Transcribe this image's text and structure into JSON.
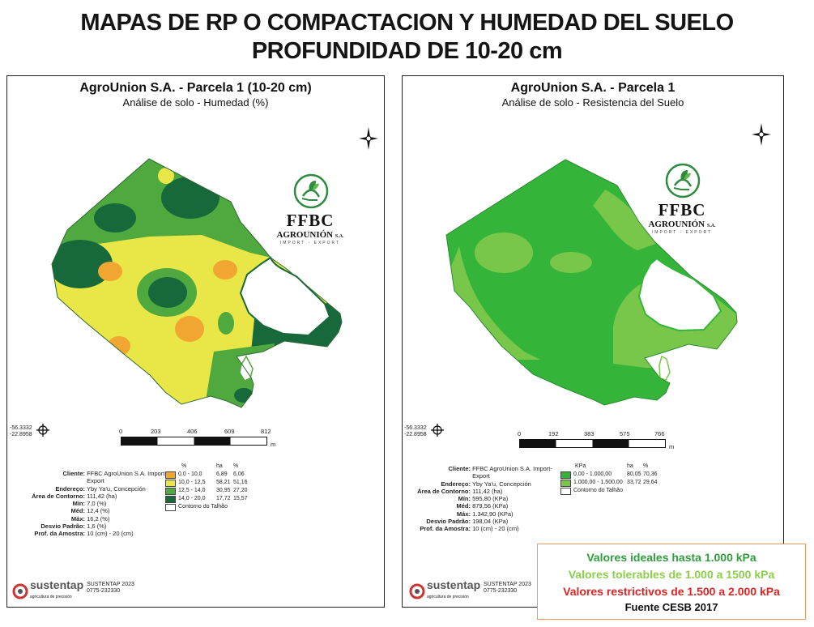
{
  "header": {
    "line1": "MAPAS DE RP O COMPACTACION Y HUMEDAD DEL SUELO",
    "line2": "PROFUNDIDAD DE 10-20 cm"
  },
  "colors": {
    "humidity_0_10": "#f0a630",
    "humidity_10_125": "#e9e647",
    "humidity_125_14": "#4fa93e",
    "humidity_14_20": "#17683a",
    "resistance_0_1000": "#34b53a",
    "resistance_1000_1500": "#78c74a",
    "ideal_text": "#2f9e3d",
    "tolerable_text": "#8ccf4a",
    "restrictive_text": "#e02424",
    "ref_border": "#e89a62"
  },
  "left_map": {
    "title": "AgroUnion S.A. - Parcela 1 (10-20 cm)",
    "subtitle": "Análise de solo - Humedad (%)",
    "logo": {
      "name": "FFBC",
      "company": "AGROUNIÓN",
      "suffix": "S.A.",
      "tagline": "IMPORT - EXPORT"
    },
    "coord_lon": "-56.3332",
    "coord_lat": "-22.8958",
    "scale_labels": [
      "0",
      "203",
      "406",
      "609",
      "812"
    ],
    "scale_unit": "m",
    "info": [
      {
        "key": "Cliente:",
        "value": "FFBC AgroUnion S.A. Import-"
      },
      {
        "key": "",
        "value": "Export"
      },
      {
        "key": "Endereço:",
        "value": "Yby Ya'u, Concepción"
      },
      {
        "key": "Área de Contorno:",
        "value": "111,42 (ha)"
      },
      {
        "key": "Mín:",
        "value": "7,0 (%)"
      },
      {
        "key": "Méd:",
        "value": "12,4 (%)"
      },
      {
        "key": "Máx:",
        "value": "16,2 (%)"
      },
      {
        "key": "Desvio Padrão:",
        "value": "1,6 (%)"
      },
      {
        "key": "Prof. da Amostra:",
        "value": "10 (cm) - 20 (cm)"
      }
    ],
    "legend_headers": [
      "%",
      "ha",
      "%"
    ],
    "legend": [
      {
        "range": "0,0 - 10,0",
        "ha": "6,89",
        "pct": "6,06"
      },
      {
        "range": "10,0 - 12,5",
        "ha": "58,21",
        "pct": "51,16"
      },
      {
        "range": "12,5 - 14,0",
        "ha": "30,95",
        "pct": "27,20"
      },
      {
        "range": "14,0 - 20,0",
        "ha": "17,72",
        "pct": "15,57"
      },
      {
        "range": "Contorno do Talhão",
        "ha": "",
        "pct": ""
      }
    ],
    "footer_logo": "sustentap",
    "footer_tag": "agricultura de precisión",
    "footer_name": "SUSTENTAP 2023",
    "footer_phone": "0775-232330"
  },
  "right_map": {
    "title": "AgroUnion S.A. - Parcela 1",
    "subtitle": "Análise de solo - Resistencia del Suelo",
    "logo": {
      "name": "FFBC",
      "company": "AGROUNIÓN",
      "suffix": "S.A.",
      "tagline": "IMPORT - EXPORT"
    },
    "coord_lon": "-56.3332",
    "coord_lat": "-22.8958",
    "scale_labels": [
      "0",
      "192",
      "383",
      "575",
      "766"
    ],
    "scale_unit": "m",
    "info": [
      {
        "key": "Cliente:",
        "value": "FFBC AgroUnion S.A. Import-"
      },
      {
        "key": "",
        "value": "Export"
      },
      {
        "key": "Endereço:",
        "value": "Yby Ya'u, Concepción"
      },
      {
        "key": "Área de Contorno:",
        "value": "111,42 (ha)"
      },
      {
        "key": "Mín:",
        "value": "595,80 (KPa)"
      },
      {
        "key": "Méd:",
        "value": "879,56 (KPa)"
      },
      {
        "key": "Máx:",
        "value": "1.342,90 (KPa)"
      },
      {
        "key": "Desvio Padrão:",
        "value": "198,04 (KPa)"
      },
      {
        "key": "Prof. da Amostra:",
        "value": "10 (cm) - 20 (cm)"
      }
    ],
    "legend_headers": [
      "KPa",
      "ha",
      "%"
    ],
    "legend": [
      {
        "range": "0,00 - 1.000,00",
        "ha": "80,05",
        "pct": "70,36"
      },
      {
        "range": "1.000,00 - 1.500,00",
        "ha": "33,72",
        "pct": "29,64"
      },
      {
        "range": "Contorno do Talhão",
        "ha": "",
        "pct": ""
      }
    ],
    "footer_logo": "sustentap",
    "footer_tag": "agricultura de precisión",
    "footer_name": "SUSTENTAP 2023",
    "footer_phone": "0775-232330"
  },
  "reference": {
    "ideal": "Valores ideales hasta 1.000 kPa",
    "tolerable": "Valores tolerables de 1.000 a 1500 kPa",
    "restrictive": "Valores restrictivos de 1.500 a 2.000 kPa",
    "source": "Fuente CESB 2017"
  }
}
